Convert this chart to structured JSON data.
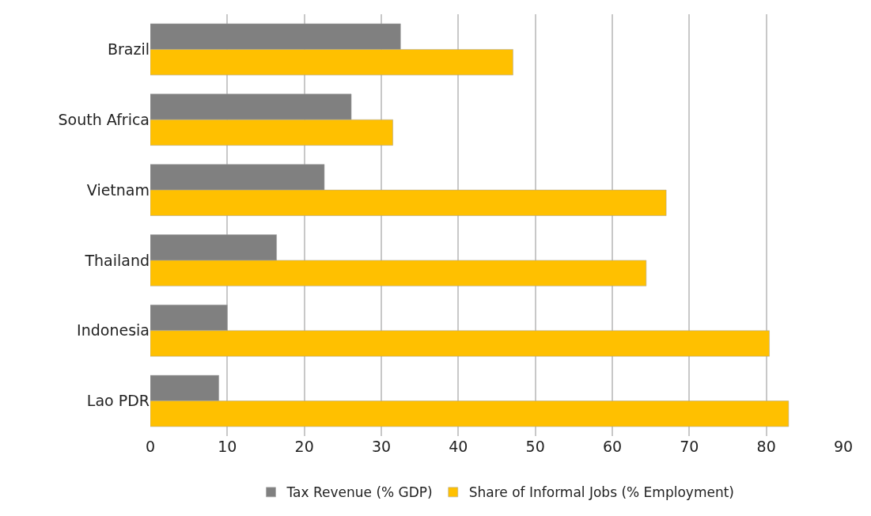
{
  "chart_data": {
    "type": "bar",
    "orientation": "horizontal",
    "categories": [
      "Brazil",
      "South Africa",
      "Vietnam",
      "Thailand",
      "Indonesia",
      "Lao PDR"
    ],
    "series": [
      {
        "name": "Tax Revenue (% GDP)",
        "color": "#808080",
        "values": [
          32.5,
          26.1,
          22.6,
          16.4,
          10.0,
          8.9
        ]
      },
      {
        "name": "Share of Informal Jobs (% Employment)",
        "color": "#ffc000",
        "values": [
          47.1,
          31.5,
          67.0,
          64.4,
          80.4,
          82.9
        ]
      }
    ],
    "xlim": [
      0,
      90
    ],
    "xticks": [
      0,
      10,
      20,
      30,
      40,
      50,
      60,
      70,
      80,
      90
    ],
    "grid": "x",
    "legend": "bottom"
  }
}
